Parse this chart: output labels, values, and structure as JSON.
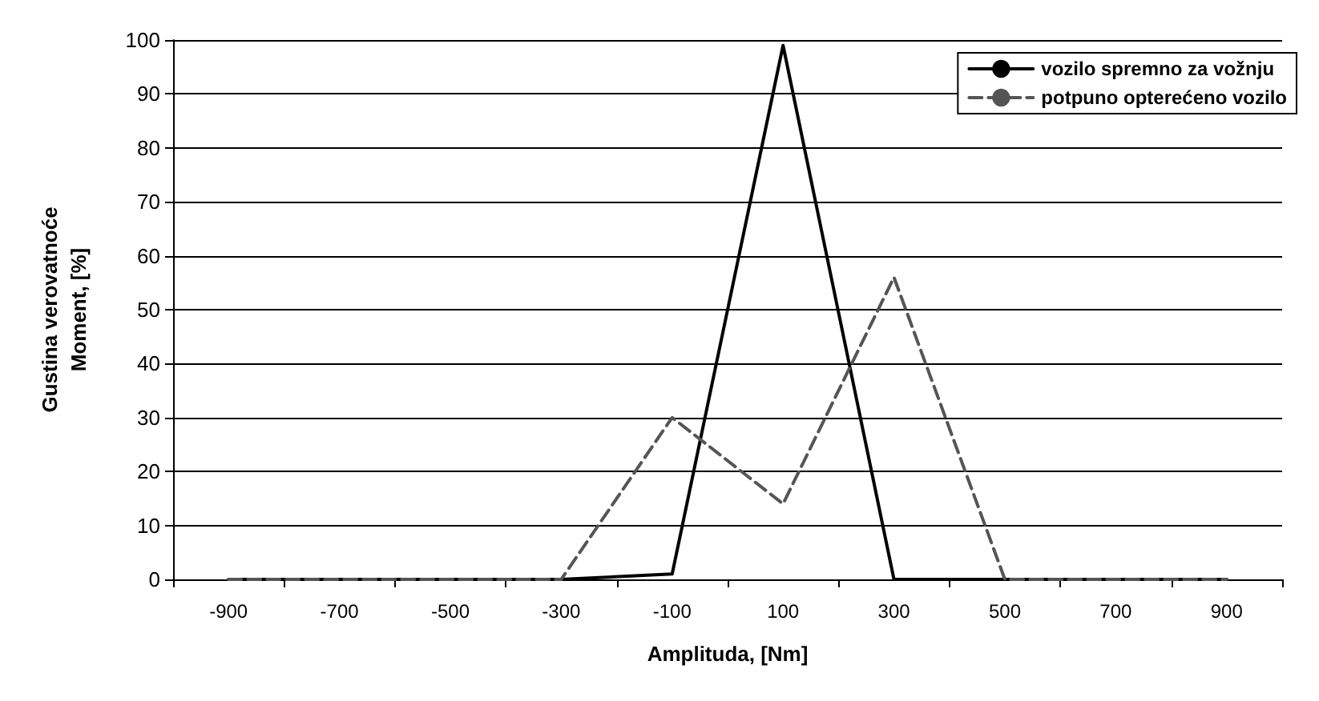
{
  "chart_data": {
    "type": "line",
    "xlabel": "Amplituda, [Nm]",
    "ylabel": "Gustina verovatnoće\nMoment, [%]",
    "categories": [
      "-900",
      "-700",
      "-500",
      "-300",
      "-100",
      "100",
      "300",
      "500",
      "700",
      "900"
    ],
    "series": [
      {
        "name": "vozilo spremno za vožnju",
        "color": "#000000",
        "line_style": "solid",
        "values": [
          0,
          0,
          0,
          0,
          1,
          99,
          0,
          0,
          0,
          0
        ]
      },
      {
        "name": "potpuno opterećeno vozilo",
        "color": "#555555",
        "line_style": "dashed",
        "values": [
          0,
          0,
          0,
          0,
          30,
          14,
          56,
          0,
          0,
          0
        ]
      }
    ],
    "ylim": [
      0,
      100
    ],
    "yticks": [
      0,
      10,
      20,
      30,
      40,
      50,
      60,
      70,
      80,
      90,
      100
    ],
    "grid": "y",
    "legend": "top right",
    "marker": "none"
  }
}
